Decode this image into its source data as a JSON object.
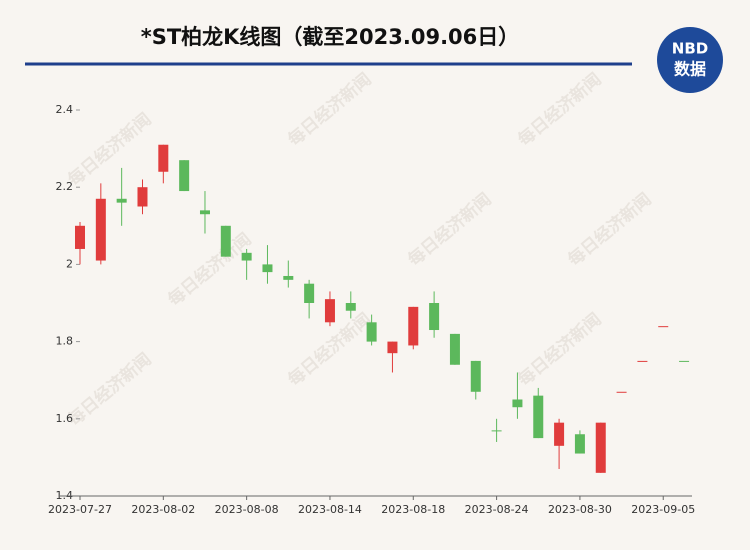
{
  "chart_data": {
    "type": "candlestick",
    "title": "*ST柏龙K线图（截至2023.09.06日）",
    "logo": {
      "top": "NBD",
      "bottom": "数据"
    },
    "watermark": "每日经济新闻",
    "categories": [
      "2023-07-27",
      null,
      null,
      null,
      "2023-08-02",
      null,
      null,
      null,
      "2023-08-08",
      null,
      null,
      null,
      "2023-08-14",
      null,
      null,
      null,
      "2023-08-18",
      null,
      null,
      null,
      "2023-08-24",
      null,
      null,
      null,
      "2023-08-30",
      null,
      null,
      null,
      "2023-09-05",
      null
    ],
    "open": [
      2.04,
      2.01,
      2.17,
      2.15,
      2.24,
      2.27,
      2.14,
      2.1,
      2.03,
      2.0,
      1.97,
      1.95,
      1.85,
      1.9,
      1.85,
      1.77,
      1.79,
      1.9,
      1.82,
      1.75,
      1.57,
      1.65,
      1.66,
      1.53,
      1.56,
      1.46,
      1.67,
      1.75,
      1.84,
      1.75
    ],
    "high": [
      2.11,
      2.21,
      2.25,
      2.22,
      2.31,
      2.27,
      2.19,
      2.1,
      2.04,
      2.05,
      2.01,
      1.96,
      1.93,
      1.93,
      1.87,
      1.8,
      1.89,
      1.93,
      1.82,
      1.75,
      1.6,
      1.72,
      1.68,
      1.6,
      1.57,
      1.59,
      1.67,
      1.75,
      1.84,
      1.75
    ],
    "low": [
      2.0,
      2.0,
      2.1,
      2.13,
      2.21,
      2.19,
      2.08,
      2.02,
      1.96,
      1.95,
      1.94,
      1.86,
      1.84,
      1.86,
      1.79,
      1.72,
      1.78,
      1.81,
      1.74,
      1.65,
      1.54,
      1.6,
      1.55,
      1.47,
      1.51,
      1.46,
      1.67,
      1.75,
      1.84,
      1.75
    ],
    "close": [
      2.1,
      2.17,
      2.16,
      2.2,
      2.31,
      2.19,
      2.13,
      2.02,
      2.01,
      1.98,
      1.96,
      1.9,
      1.91,
      1.88,
      1.8,
      1.8,
      1.89,
      1.83,
      1.74,
      1.67,
      1.57,
      1.63,
      1.55,
      1.59,
      1.51,
      1.59,
      1.67,
      1.75,
      1.84,
      1.75
    ],
    "colors": [
      "#e03c3c",
      "#e03c3c",
      "#5cb85c",
      "#e03c3c",
      "#e03c3c",
      "#5cb85c",
      "#5cb85c",
      "#5cb85c",
      "#5cb85c",
      "#5cb85c",
      "#5cb85c",
      "#5cb85c",
      "#e03c3c",
      "#5cb85c",
      "#5cb85c",
      "#e03c3c",
      "#e03c3c",
      "#5cb85c",
      "#5cb85c",
      "#5cb85c",
      "#5cb85c",
      "#5cb85c",
      "#5cb85c",
      "#e03c3c",
      "#5cb85c",
      "#e03c3c",
      "#e03c3c",
      "#e03c3c",
      "#e03c3c",
      "#5cb85c"
    ],
    "ylim": [
      1.4,
      2.4
    ],
    "yticks": [
      1.4,
      1.6,
      1.8,
      2,
      2.2,
      2.4
    ]
  }
}
